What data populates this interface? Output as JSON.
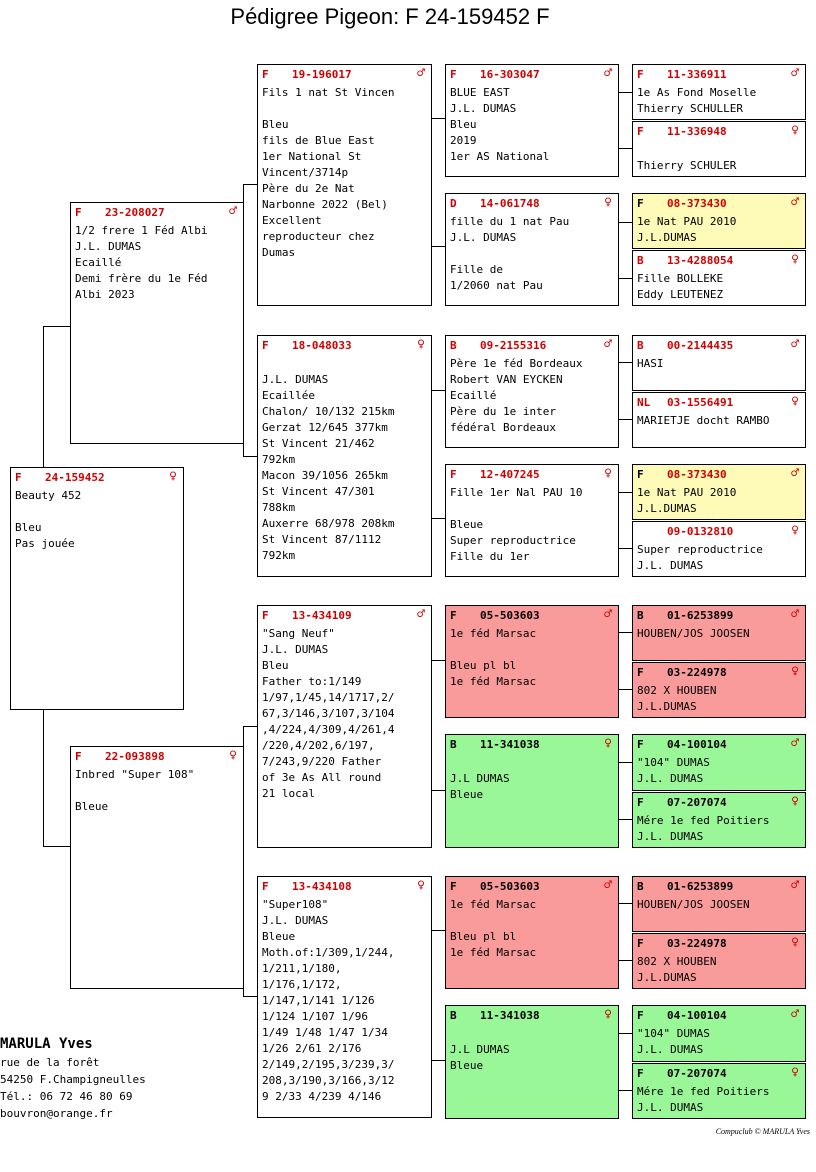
{
  "title": "Pédigree Pigeon: F   24-159452 F",
  "subject": {
    "country": "F",
    "ring": "24-159452",
    "sex": "♀",
    "text": "Beauty 452\n\nBleu\nPas jouée"
  },
  "sire": {
    "country": "F",
    "ring": "23-208027",
    "sex": "♂",
    "text": "1/2 frere 1 Féd Albi\nJ.L. DUMAS\nEcaillé\nDemi frère du 1e Féd\nAlbi 2023"
  },
  "dam": {
    "country": "F",
    "ring": "22-093898",
    "sex": "♀",
    "text": "Inbred \"Super 108\"\n\nBleue"
  },
  "g3": [
    {
      "country": "F",
      "ring": "19-196017",
      "sex": "♂",
      "text": "Fils 1 nat St Vincen\n\nBleu\nfils de Blue East\n1er National St\nVincent/3714p\nPère du 2e Nat\nNarbonne 2022 (Bel)\nExcellent\nreproducteur chez\nDumas"
    },
    {
      "country": "F",
      "ring": "18-048033",
      "sex": "♀",
      "text": "\nJ.L. DUMAS\nEcaillée\nChalon/ 10/132 215km\nGerzat 12/645 377km\nSt Vincent 21/462\n792km\nMacon 39/1056 265km\nSt Vincent 47/301\n788km\nAuxerre 68/978 208km\nSt Vincent 87/1112\n792km"
    },
    {
      "country": "F",
      "ring": "13-434109",
      "sex": "♂",
      "text": "\"Sang Neuf\"\nJ.L. DUMAS\nBleu\nFather to:1/149\n1/97,1/45,14/1717,2/\n67,3/146,3/107,3/104\n,4/224,4/309,4/261,4\n/220,4/202,6/197,\n7/243,9/220 Father\nof 3e As All round\n21 local"
    },
    {
      "country": "F",
      "ring": "13-434108",
      "sex": "♀",
      "text": "\"Super108\"\nJ.L. DUMAS\nBleue\nMoth.of:1/309,1/244,\n1/211,1/180,\n1/176,1/172,\n1/147,1/141 1/126\n1/124 1/107 1/96\n1/49 1/48 1/47 1/34\n1/26 2/61 2/176\n2/149,2/195,3/239,3/\n208,3/190,3/166,3/12\n9 2/33 4/239 4/146"
    }
  ],
  "g4": [
    {
      "country": "F",
      "ring": "16-303047",
      "sex": "♂",
      "text": "BLUE EAST\nJ.L. DUMAS\nBleu\n2019\n1er AS National"
    },
    {
      "country": "D",
      "ring": "14-061748",
      "sex": "♀",
      "text": "fille du 1 nat Pau\nJ.L. DUMAS\n\nFille de\n1/2060 nat Pau"
    },
    {
      "country": "B",
      "ring": "09-2155316",
      "sex": "♂",
      "text": "Père 1e féd Bordeaux\nRobert VAN EYCKEN\nEcaillé\nPère du 1e inter\nfédéral Bordeaux"
    },
    {
      "country": "F",
      "ring": "12-407245",
      "sex": "♀",
      "text": "Fille 1er Nal PAU 10\n\nBleue\nSuper reproductrice\nFille du 1er"
    },
    {
      "country": "F",
      "ring": "05-503603",
      "sex": "♂",
      "text": "1e féd Marsac\n\nBleu pl bl\n1e féd Marsac"
    },
    {
      "country": "B",
      "ring": "11-341038",
      "sex": "♀",
      "text": "\nJ.L DUMAS\nBleue"
    },
    {
      "country": "F",
      "ring": "05-503603",
      "sex": "♂",
      "text": "1e féd Marsac\n\nBleu pl bl\n1e féd Marsac"
    },
    {
      "country": "B",
      "ring": "11-341038",
      "sex": "♀",
      "text": "\nJ.L DUMAS\nBleue"
    }
  ],
  "g5": [
    {
      "country": "F",
      "ring": "11-336911",
      "sex": "♂",
      "text": "1e As Fond Moselle\nThierry SCHULLER"
    },
    {
      "country": "F",
      "ring": "11-336948",
      "sex": "♀",
      "text": "\nThierry SCHULER"
    },
    {
      "country": "F",
      "ring": "08-373430",
      "sex": "♂",
      "text": "1e Nat PAU 2010\nJ.L.DUMAS"
    },
    {
      "country": "B",
      "ring": "13-4288054",
      "sex": "♀",
      "text": "Fille BOLLEKE\nEddy LEUTENEZ"
    },
    {
      "country": "B",
      "ring": "00-2144435",
      "sex": "♂",
      "text": "HASI"
    },
    {
      "country": "NL",
      "ring": "03-1556491",
      "sex": "♀",
      "text": "MARIETJE docht RAMBO"
    },
    {
      "country": "F",
      "ring": "08-373430",
      "sex": "♂",
      "text": "1e Nat PAU 2010\nJ.L.DUMAS"
    },
    {
      "country": "",
      "ring": "09-0132810",
      "sex": "♀",
      "text": "Super reproductrice\nJ.L. DUMAS"
    },
    {
      "country": "B",
      "ring": "01-6253899",
      "sex": "♂",
      "text": "HOUBEN/JOS JOOSEN"
    },
    {
      "country": "F",
      "ring": "03-224978",
      "sex": "♀",
      "text": "802 X HOUBEN\nJ.L.DUMAS"
    },
    {
      "country": "F",
      "ring": "04-100104",
      "sex": "♂",
      "text": "\"104\" DUMAS\nJ.L. DUMAS"
    },
    {
      "country": "F",
      "ring": "07-207074",
      "sex": "♀",
      "text": "Mére 1e fed Poitiers\nJ.L. DUMAS"
    },
    {
      "country": "B",
      "ring": "01-6253899",
      "sex": "♂",
      "text": "HOUBEN/JOS JOOSEN"
    },
    {
      "country": "F",
      "ring": "03-224978",
      "sex": "♀",
      "text": "802 X HOUBEN\nJ.L.DUMAS"
    },
    {
      "country": "F",
      "ring": "04-100104",
      "sex": "♂",
      "text": "\"104\" DUMAS\nJ.L. DUMAS"
    },
    {
      "country": "F",
      "ring": "07-207074",
      "sex": "♀",
      "text": "Mére 1e fed Poitiers\nJ.L. DUMAS"
    }
  ],
  "owner": {
    "name": "MARULA Yves",
    "address1": "rue de la forêt",
    "address2": "54250  F.Champigneulles",
    "phone": "Tél.: 06 72 46 80 69",
    "email": "bouvron@orange.fr"
  },
  "footer": "Compuclub © MARULA Yves",
  "colors": {
    "red_card": "#f99b9b",
    "green_card": "#99f797",
    "yellow_card": "#fdfbb7",
    "accent": "#d00000"
  }
}
